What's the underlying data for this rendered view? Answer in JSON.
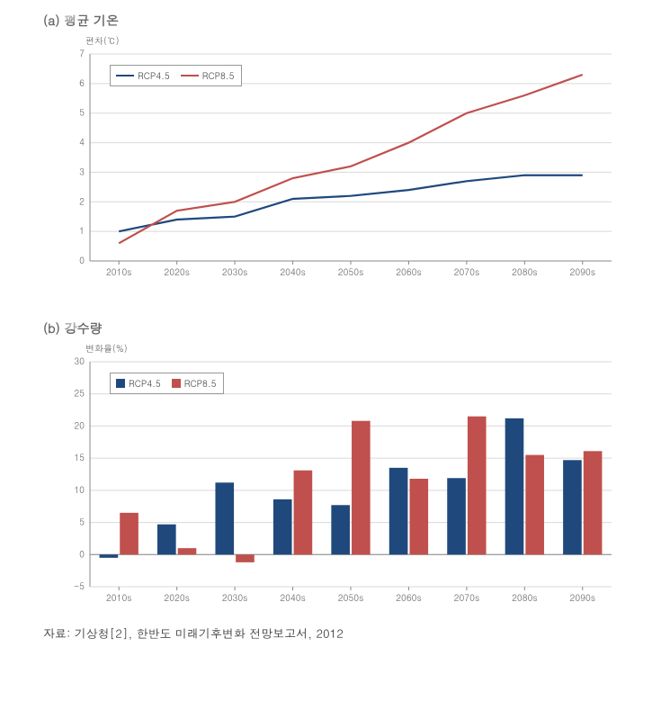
{
  "colors": {
    "rcp45": "#1f497d",
    "rcp85": "#c0504d",
    "grid": "#d9d9d9",
    "axis": "#888888",
    "bg": "#ffffff"
  },
  "categories": [
    "2010s",
    "2020s",
    "2030s",
    "2040s",
    "2050s",
    "2060s",
    "2070s",
    "2080s",
    "2090s"
  ],
  "chart_a": {
    "title": "(a) 평균 기온",
    "y_axis_label": "편차(℃)",
    "type": "line",
    "ylim": [
      0,
      7
    ],
    "yticks": [
      0,
      1,
      2,
      3,
      4,
      5,
      6,
      7
    ],
    "legend": {
      "rcp45": "RCP4.5",
      "rcp85": "RCP8.5"
    },
    "series": {
      "rcp45": [
        1.0,
        1.4,
        1.5,
        2.1,
        2.2,
        2.4,
        2.7,
        2.9,
        2.9
      ],
      "rcp85": [
        0.6,
        1.7,
        2.0,
        2.8,
        3.2,
        4.0,
        5.0,
        5.6,
        6.3
      ]
    }
  },
  "chart_b": {
    "title": "(b) 강수량",
    "y_axis_label": "변화율(%)",
    "type": "bar",
    "ylim": [
      -5,
      30
    ],
    "yticks": [
      -5,
      0,
      5,
      10,
      15,
      20,
      25,
      30
    ],
    "legend": {
      "rcp45": "RCP4.5",
      "rcp85": "RCP8.5"
    },
    "bar_width": 0.32,
    "series": {
      "rcp45": [
        -0.5,
        4.7,
        11.2,
        8.6,
        7.7,
        13.5,
        11.9,
        21.2,
        14.7
      ],
      "rcp85": [
        6.5,
        1.0,
        -1.2,
        13.1,
        20.8,
        11.8,
        21.5,
        15.5,
        16.1
      ]
    }
  },
  "citation": "자료: 기상청[2], 한반도 미래기후변화 전망보고서, 2012"
}
